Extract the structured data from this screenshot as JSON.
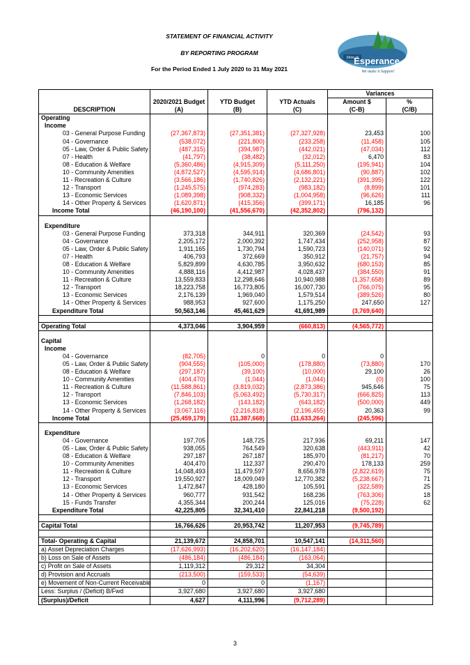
{
  "titles": {
    "line1": "STATEMENT OF FINANCIAL ACTIVITY",
    "line2": "BY REPORTING PROGRAM",
    "line3": "For the Period Ended 1 July 2020 to 31 May 2021"
  },
  "logo": {
    "shire_of": "Shire of",
    "name": "Esperance",
    "tagline": "We make it happen!"
  },
  "header": {
    "variances": "Variances",
    "description": "DESCRIPTION",
    "col1": "2020/2021 Budget",
    "col1_sub": "(A)",
    "col2": "YTD Budget",
    "col2_sub": "(B)",
    "col3": "YTD Actuals",
    "col3_sub": "(C)",
    "col4": "Amount $",
    "col4_sub": "(C-B)",
    "col5": "%",
    "col5_sub": "(C/B)"
  },
  "operating": {
    "label": "Operating",
    "income": {
      "label": "Income",
      "rows": [
        {
          "d": "03 - General Purpose Funding",
          "a": "(27,367,873)",
          "b": "(27,351,381)",
          "c": "(27,327,928)",
          "v": "23,453",
          "p": "100"
        },
        {
          "d": "04 - Governance",
          "a": "(538,072)",
          "b": "(221,800)",
          "c": "(233,258)",
          "v": "(11,458)",
          "p": "105"
        },
        {
          "d": "05 - Law, Order & Public Safety",
          "a": "(487,315)",
          "b": "(394,987)",
          "c": "(442,021)",
          "v": "(47,034)",
          "p": "112"
        },
        {
          "d": "07 - Health",
          "a": "(41,797)",
          "b": "(38,482)",
          "c": "(32,012)",
          "v": "6,470",
          "p": "83"
        },
        {
          "d": "08 - Education & Welfare",
          "a": "(5,360,486)",
          "b": "(4,915,309)",
          "c": "(5,111,250)",
          "v": "(195,941)",
          "p": "104"
        },
        {
          "d": "10 - Community Amenities",
          "a": "(4,872,527)",
          "b": "(4,595,914)",
          "c": "(4,686,801)",
          "v": "(90,887)",
          "p": "102"
        },
        {
          "d": "11 - Recreation & Culture",
          "a": "(3,566,186)",
          "b": "(1,740,826)",
          "c": "(2,132,221)",
          "v": "(391,395)",
          "p": "122"
        },
        {
          "d": "12 - Transport",
          "a": "(1,245,575)",
          "b": "(974,283)",
          "c": "(983,182)",
          "v": "(8,899)",
          "p": "101"
        },
        {
          "d": "13 - Economic Services",
          "a": "(1,089,398)",
          "b": "(908,332)",
          "c": "(1,004,958)",
          "v": "(96,626)",
          "p": "111"
        },
        {
          "d": "14 - Other Property & Services",
          "a": "(1,620,871)",
          "b": "(415,356)",
          "c": "(399,171)",
          "v": "16,185",
          "p": "96"
        }
      ],
      "total": {
        "d": "Income Total",
        "a": "(46,190,100)",
        "b": "(41,556,670)",
        "c": "(42,352,802)",
        "v": "(796,132)",
        "p": ""
      }
    },
    "expenditure": {
      "label": "Expenditure",
      "rows": [
        {
          "d": "03 - General Purpose Funding",
          "a": "373,318",
          "b": "344,911",
          "c": "320,369",
          "v": "(24,542)",
          "p": "93"
        },
        {
          "d": "04 - Governance",
          "a": "2,205,172",
          "b": "2,000,392",
          "c": "1,747,434",
          "v": "(252,958)",
          "p": "87"
        },
        {
          "d": "05 - Law, Order & Public Safety",
          "a": "1,911,165",
          "b": "1,730,794",
          "c": "1,590,723",
          "v": "(140,071)",
          "p": "92"
        },
        {
          "d": "07 - Health",
          "a": "406,793",
          "b": "372,669",
          "c": "350,912",
          "v": "(21,757)",
          "p": "94"
        },
        {
          "d": "08 - Education & Welfare",
          "a": "5,829,899",
          "b": "4,630,785",
          "c": "3,950,632",
          "v": "(680,153)",
          "p": "85"
        },
        {
          "d": "10 - Community Amenities",
          "a": "4,888,116",
          "b": "4,412,987",
          "c": "4,028,437",
          "v": "(384,550)",
          "p": "91"
        },
        {
          "d": "11 - Recreation & Culture",
          "a": "13,559,833",
          "b": "12,298,646",
          "c": "10,940,988",
          "v": "(1,357,658)",
          "p": "89"
        },
        {
          "d": "12 - Transport",
          "a": "18,223,758",
          "b": "16,773,805",
          "c": "16,007,730",
          "v": "(766,075)",
          "p": "95"
        },
        {
          "d": "13 - Economic Services",
          "a": "2,176,139",
          "b": "1,969,040",
          "c": "1,579,514",
          "v": "(389,526)",
          "p": "80"
        },
        {
          "d": "14 - Other Property & Services",
          "a": "988,953",
          "b": "927,600",
          "c": "1,175,250",
          "v": "247,650",
          "p": "127"
        }
      ],
      "total": {
        "d": "Expenditure Total",
        "a": "50,563,146",
        "b": "45,461,629",
        "c": "41,691,989",
        "v": "(3,769,640)",
        "p": ""
      }
    },
    "total": {
      "d": "Operating Total",
      "a": "4,373,046",
      "b": "3,904,959",
      "c": "(660,813)",
      "v": "(4,565,772)",
      "p": ""
    }
  },
  "capital": {
    "label": "Capital",
    "income": {
      "label": "Income",
      "rows": [
        {
          "d": "04 - Governance",
          "a": "(82,705)",
          "b": "0",
          "c": "0",
          "v": "0",
          "p": ""
        },
        {
          "d": "05 - Law, Order & Public Safety",
          "a": "(904,555)",
          "b": "(105,000)",
          "c": "(178,880)",
          "v": "(73,880)",
          "p": "170"
        },
        {
          "d": "08 - Education & Welfare",
          "a": "(297,187)",
          "b": "(39,100)",
          "c": "(10,000)",
          "v": "29,100",
          "p": "26"
        },
        {
          "d": "10 - Community Amenities",
          "a": "(404,470)",
          "b": "(1,044)",
          "c": "(1,044)",
          "v": "(0)",
          "p": "100"
        },
        {
          "d": "11 - Recreation & Culture",
          "a": "(11,588,861)",
          "b": "(3,819,032)",
          "c": "(2,873,386)",
          "v": "945,646",
          "p": "75"
        },
        {
          "d": "12 - Transport",
          "a": "(7,846,103)",
          "b": "(5,063,492)",
          "c": "(5,730,317)",
          "v": "(666,825)",
          "p": "113"
        },
        {
          "d": "13 - Economic Services",
          "a": "(1,268,182)",
          "b": "(143,182)",
          "c": "(643,182)",
          "v": "(500,000)",
          "p": "449"
        },
        {
          "d": "14 - Other Property & Services",
          "a": "(3,067,116)",
          "b": "(2,216,818)",
          "c": "(2,196,455)",
          "v": "20,363",
          "p": "99"
        }
      ],
      "total": {
        "d": "Income Total",
        "a": "(25,459,179)",
        "b": "(11,387,668)",
        "c": "(11,633,264)",
        "v": "(245,596)",
        "p": ""
      }
    },
    "expenditure": {
      "label": "Expenditure",
      "rows": [
        {
          "d": "04 - Governance",
          "a": "197,705",
          "b": "148,725",
          "c": "217,936",
          "v": "69,211",
          "p": "147"
        },
        {
          "d": "05 - Law, Order & Public Safety",
          "a": "938,055",
          "b": "764,549",
          "c": "320,638",
          "v": "(443,911)",
          "p": "42"
        },
        {
          "d": "08 - Education & Welfare",
          "a": "297,187",
          "b": "267,187",
          "c": "185,970",
          "v": "(81,217)",
          "p": "70"
        },
        {
          "d": "10 - Community Amenities",
          "a": "404,470",
          "b": "112,337",
          "c": "290,470",
          "v": "178,133",
          "p": "259"
        },
        {
          "d": "11 - Recreation & Culture",
          "a": "14,048,493",
          "b": "11,479,597",
          "c": "8,656,978",
          "v": "(2,822,619)",
          "p": "75"
        },
        {
          "d": "12 - Transport",
          "a": "19,550,927",
          "b": "18,009,049",
          "c": "12,770,382",
          "v": "(5,238,667)",
          "p": "71"
        },
        {
          "d": "13 - Economic Services",
          "a": "1,472,847",
          "b": "428,180",
          "c": "105,591",
          "v": "(322,589)",
          "p": "25"
        },
        {
          "d": "14 - Other Property & Services",
          "a": "960,777",
          "b": "931,542",
          "c": "168,236",
          "v": "(763,306)",
          "p": "18"
        },
        {
          "d": "15 - Funds Transfer",
          "a": "4,355,344",
          "b": "200,244",
          "c": "125,016",
          "v": "(75,228)",
          "p": "62"
        }
      ],
      "total": {
        "d": "Expenditure Total",
        "a": "42,225,805",
        "b": "32,341,410",
        "c": "22,841,218",
        "v": "(9,500,192)",
        "p": ""
      }
    },
    "total": {
      "d": "Capital Total",
      "a": "16,766,626",
      "b": "20,953,742",
      "c": "11,207,953",
      "v": "(9,745,789)",
      "p": ""
    }
  },
  "summary": {
    "total": {
      "d": "Total- Operating & Capital",
      "a": "21,139,672",
      "b": "24,858,701",
      "c": "10,547,141",
      "v": "(14,311,560)",
      "p": ""
    },
    "rows": [
      {
        "d": "a) Asset Depreciation Charges",
        "a": "(17,626,993)",
        "b": "(16,202,620)",
        "c": "(16,147,184)",
        "v": "",
        "p": ""
      },
      {
        "d": "b) Loss on Sale of Assets",
        "a": "(486,184)",
        "b": "(486,184)",
        "c": "(163,064)",
        "v": "",
        "p": ""
      },
      {
        "d": "c) Profit on Sale of Assets",
        "a": "1,119,312",
        "b": "29,312",
        "c": "34,304",
        "v": "",
        "p": ""
      },
      {
        "d": "d) Provision and Accruals",
        "a": "(213,500)",
        "b": "(159,533)",
        "c": "(54,639)",
        "v": "",
        "p": ""
      },
      {
        "d": "e) Movement of Non-Current Receivable",
        "a": "0",
        "b": "0",
        "c": "(1,167)",
        "v": "",
        "p": ""
      },
      {
        "d": "Less: Surplus / (Deficit) B/Fwd",
        "a": "3,927,680",
        "b": "3,927,680",
        "c": "3,927,680",
        "v": "",
        "p": ""
      }
    ],
    "final": {
      "d": "(Surplus)/Deficit",
      "a": "4,627",
      "b": "4,111,996",
      "c": "(9,712,289)",
      "v": "",
      "p": ""
    }
  },
  "page_number": "3"
}
